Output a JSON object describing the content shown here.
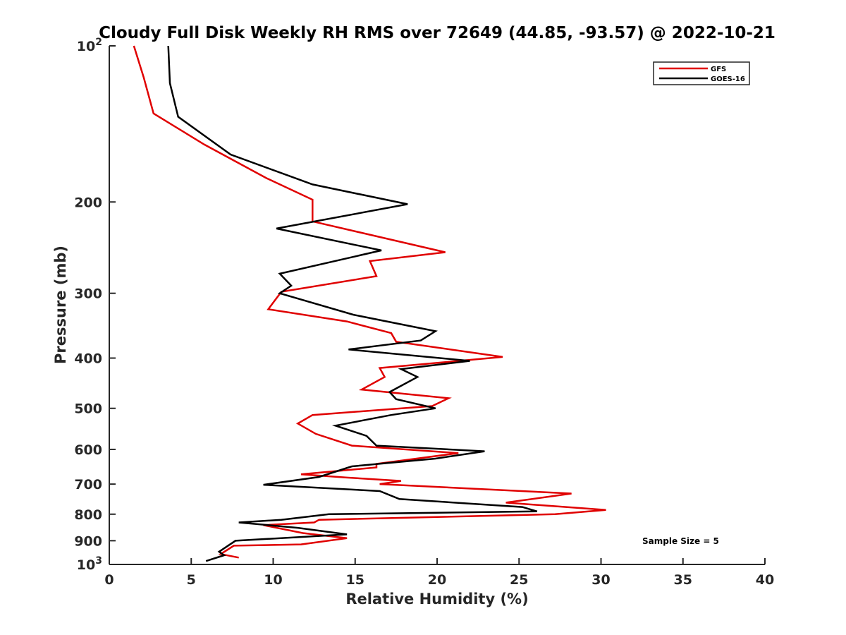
{
  "chart_data": {
    "type": "line",
    "title": "Cloudy Full Disk Weekly RH RMS over 72649 (44.85, -93.57) @ 2022-10-21",
    "xlabel": "Relative Humidity (%)",
    "ylabel": "Pressure (mb)",
    "xlim": [
      0,
      40
    ],
    "ylim": [
      100,
      1000
    ],
    "y_scale": "log",
    "y_reversed": true,
    "x_ticks": [
      "0",
      "5",
      "10",
      "15",
      "20",
      "25",
      "30",
      "35",
      "40"
    ],
    "y_ticks": [
      {
        "value": 100,
        "base": "10",
        "exp": "2"
      },
      {
        "value": 200,
        "label": "200"
      },
      {
        "value": 300,
        "label": "300"
      },
      {
        "value": 400,
        "label": "400"
      },
      {
        "value": 500,
        "label": "500"
      },
      {
        "value": 600,
        "label": "600"
      },
      {
        "value": 700,
        "label": "700"
      },
      {
        "value": 800,
        "label": "800"
      },
      {
        "value": 900,
        "label": "900"
      },
      {
        "value": 1000,
        "base": "10",
        "exp": "3"
      }
    ],
    "grid": false,
    "legend_position": "top-right",
    "annotation": "Sample Size = 5",
    "series": [
      {
        "name": "GFS",
        "color": "#e00000",
        "x": [
          1.5,
          2.1,
          2.7,
          5.8,
          9.6,
          12.4,
          12.4,
          12.4,
          20.5,
          15.9,
          16.3,
          10.5,
          9.7,
          14.5,
          17.2,
          17.5,
          24.0,
          16.5,
          16.8,
          15.4,
          20.7,
          19.7,
          12.4,
          11.5,
          12.6,
          14.8,
          21.3,
          16.3,
          16.3,
          11.7,
          14.5,
          17.8,
          16.5,
          28.2,
          24.2,
          30.3,
          27.2,
          12.8,
          12.5,
          9.4,
          11.8,
          14.5,
          11.7,
          7.6,
          6.8,
          7.9
        ],
        "y": [
          100,
          115,
          135,
          155,
          180,
          198,
          215,
          218,
          250,
          260,
          278,
          298,
          322,
          340,
          358,
          372,
          398,
          418,
          435,
          460,
          478,
          495,
          515,
          535,
          560,
          590,
          610,
          640,
          650,
          670,
          680,
          690,
          700,
          730,
          760,
          785,
          800,
          820,
          830,
          840,
          870,
          890,
          915,
          920,
          955,
          970
        ]
      },
      {
        "name": "GOES-16",
        "color": "#000000",
        "x": [
          3.6,
          3.6,
          3.7,
          4.2,
          7.4,
          12.4,
          18.2,
          10.2,
          16.6,
          10.4,
          11.1,
          10.4,
          14.9,
          19.9,
          19.0,
          14.6,
          22.0,
          17.8,
          18.8,
          17.1,
          17.5,
          19.9,
          17.2,
          13.8,
          15.7,
          16.3,
          22.9,
          19.9,
          14.8,
          14.6,
          12.8,
          9.4,
          16.5,
          17.7,
          25.2,
          26.1,
          13.4,
          10.5,
          7.9,
          11.5,
          14.5,
          7.7,
          6.7,
          7.0,
          5.9
        ],
        "y": [
          100,
          100,
          118,
          137,
          162,
          185,
          202,
          225,
          248,
          275,
          290,
          300,
          330,
          355,
          370,
          385,
          405,
          420,
          435,
          465,
          480,
          500,
          515,
          540,
          565,
          590,
          605,
          625,
          647,
          650,
          678,
          702,
          722,
          748,
          775,
          790,
          800,
          820,
          830,
          850,
          875,
          900,
          945,
          960,
          985
        ]
      }
    ]
  }
}
